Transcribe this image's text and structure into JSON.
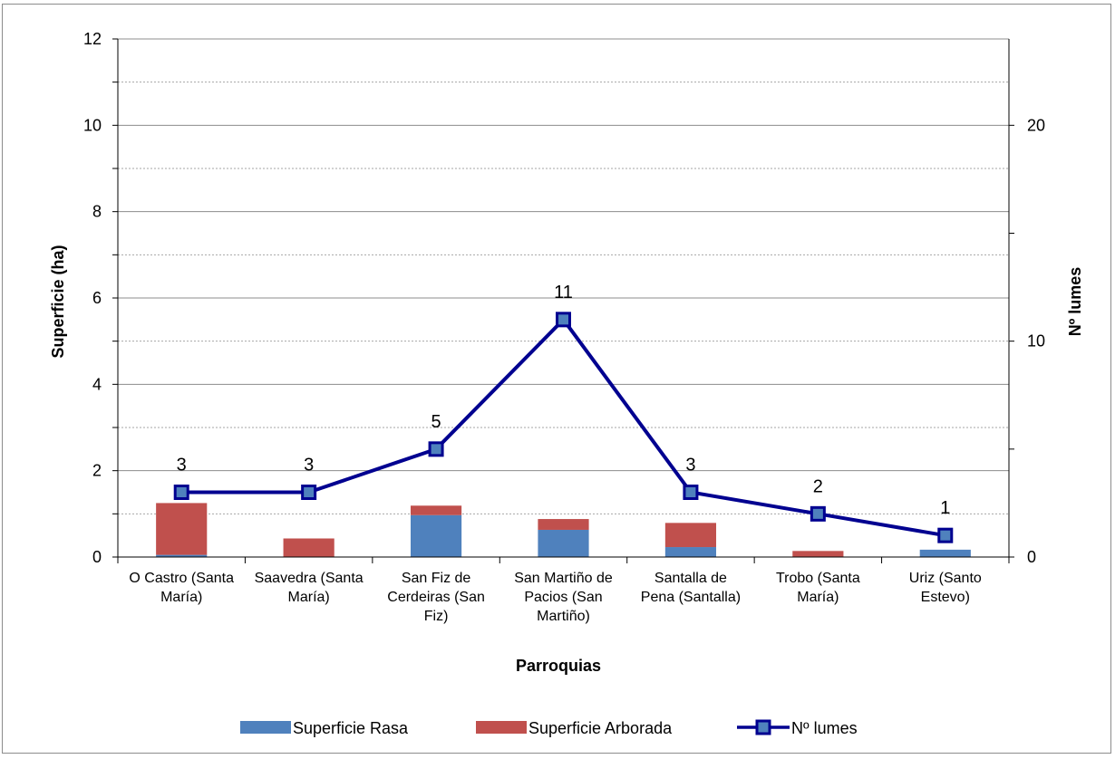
{
  "chart_data": {
    "type": "bar",
    "stacked": true,
    "categories": [
      [
        "O Castro (Santa",
        "María)"
      ],
      [
        "Saavedra (Santa",
        "María)"
      ],
      [
        "San Fiz de",
        "Cerdeiras (San",
        "Fiz)"
      ],
      [
        "San Martiño de",
        "Pacios (San",
        "Martiño)"
      ],
      [
        "Santalla de",
        "Pena (Santalla)"
      ],
      [
        "Trobo (Santa",
        "María)"
      ],
      [
        "Uriz (Santo",
        "Estevo)"
      ]
    ],
    "series": [
      {
        "name": "Superficie Rasa",
        "type": "bar",
        "axis": "left",
        "color": "#4f81bd",
        "values": [
          0.05,
          0.0,
          0.97,
          0.63,
          0.23,
          0.0,
          0.17
        ]
      },
      {
        "name": "Superficie Arborada",
        "type": "bar",
        "axis": "left",
        "color": "#c0504d",
        "values": [
          1.2,
          0.43,
          0.22,
          0.25,
          0.56,
          0.14,
          0.0
        ]
      },
      {
        "name": "Nº lumes",
        "type": "line",
        "axis": "right",
        "color": "#000090",
        "marker_fill": "#4f81bd",
        "values": [
          3,
          3,
          5,
          11,
          3,
          2,
          1
        ]
      }
    ],
    "xlabel": "Parroquias",
    "ylabel": "Superficie (ha)",
    "y2label": "Nº lumes",
    "ylim": [
      0,
      12
    ],
    "y2lim": [
      0,
      24
    ],
    "yticks": [
      0,
      2,
      4,
      6,
      8,
      10,
      12
    ],
    "y2ticks": [
      0,
      10,
      20
    ],
    "grid": true,
    "legend": "bottom"
  }
}
